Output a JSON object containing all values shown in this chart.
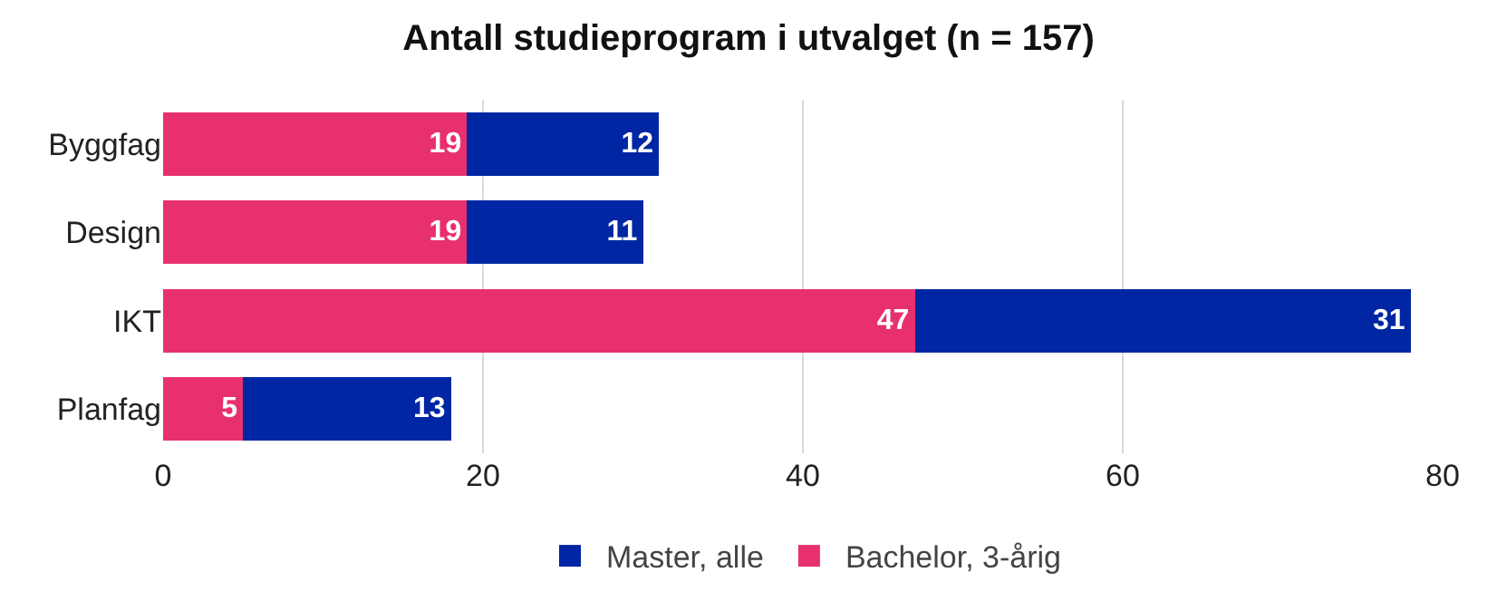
{
  "chart_data": {
    "type": "bar",
    "orientation": "horizontal",
    "stacked": true,
    "title": "Antall studieprogram i utvalget (n = 157)",
    "categories": [
      "Byggfag",
      "Design",
      "IKT",
      "Planfag"
    ],
    "series": [
      {
        "name": "Bachelor, 3-årig",
        "color": "#e8306f",
        "values": [
          19,
          19,
          47,
          5
        ]
      },
      {
        "name": "Master, alle",
        "color": "#0026a3",
        "values": [
          12,
          11,
          31,
          13
        ]
      }
    ],
    "xlim": [
      0,
      80
    ],
    "xticks": [
      0,
      20,
      40,
      60,
      80
    ],
    "grid": "x",
    "legend": "bottom",
    "data_labels": true
  }
}
